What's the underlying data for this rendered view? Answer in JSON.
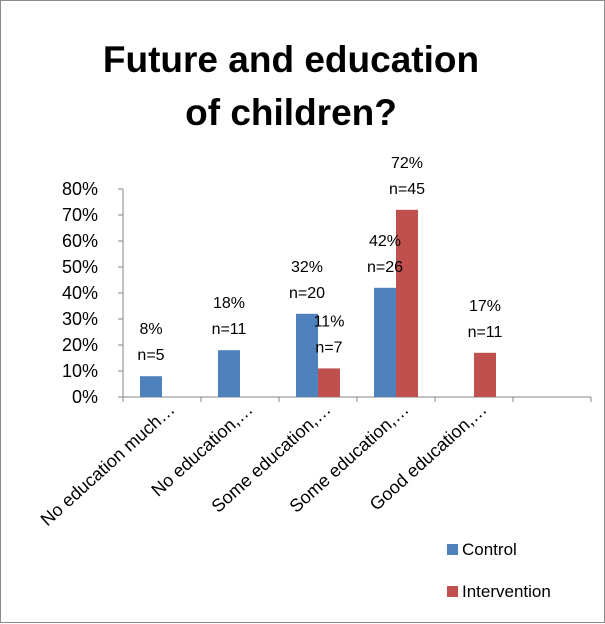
{
  "chart_data": {
    "type": "bar",
    "title_lines": [
      "Future and education",
      "of children?"
    ],
    "categories": [
      "No education much…",
      "No education,…",
      "Some education,…",
      "Some education,…",
      "Good education,…"
    ],
    "series": [
      {
        "name": "Control",
        "color": "#4f81bd",
        "values": [
          8,
          18,
          32,
          42,
          null
        ],
        "labels": [
          [
            "8%",
            "n=5"
          ],
          [
            "18%",
            "n=11"
          ],
          [
            "32%",
            "n=20"
          ],
          [
            "42%",
            "n=26"
          ],
          null
        ]
      },
      {
        "name": "Intervention",
        "color": "#c0504d",
        "values": [
          null,
          null,
          11,
          72,
          17
        ],
        "labels": [
          null,
          null,
          [
            "11%",
            "n=7"
          ],
          [
            "72%",
            "n=45"
          ],
          [
            "17%",
            "n=11"
          ]
        ]
      }
    ],
    "y_ticks": [
      "0%",
      "10%",
      "20%",
      "30%",
      "40%",
      "50%",
      "60%",
      "70%",
      "80%"
    ],
    "ylim": [
      0,
      80
    ],
    "ylabel": "",
    "xlabel": "",
    "grid": false,
    "legend_position": "bottom-right"
  }
}
